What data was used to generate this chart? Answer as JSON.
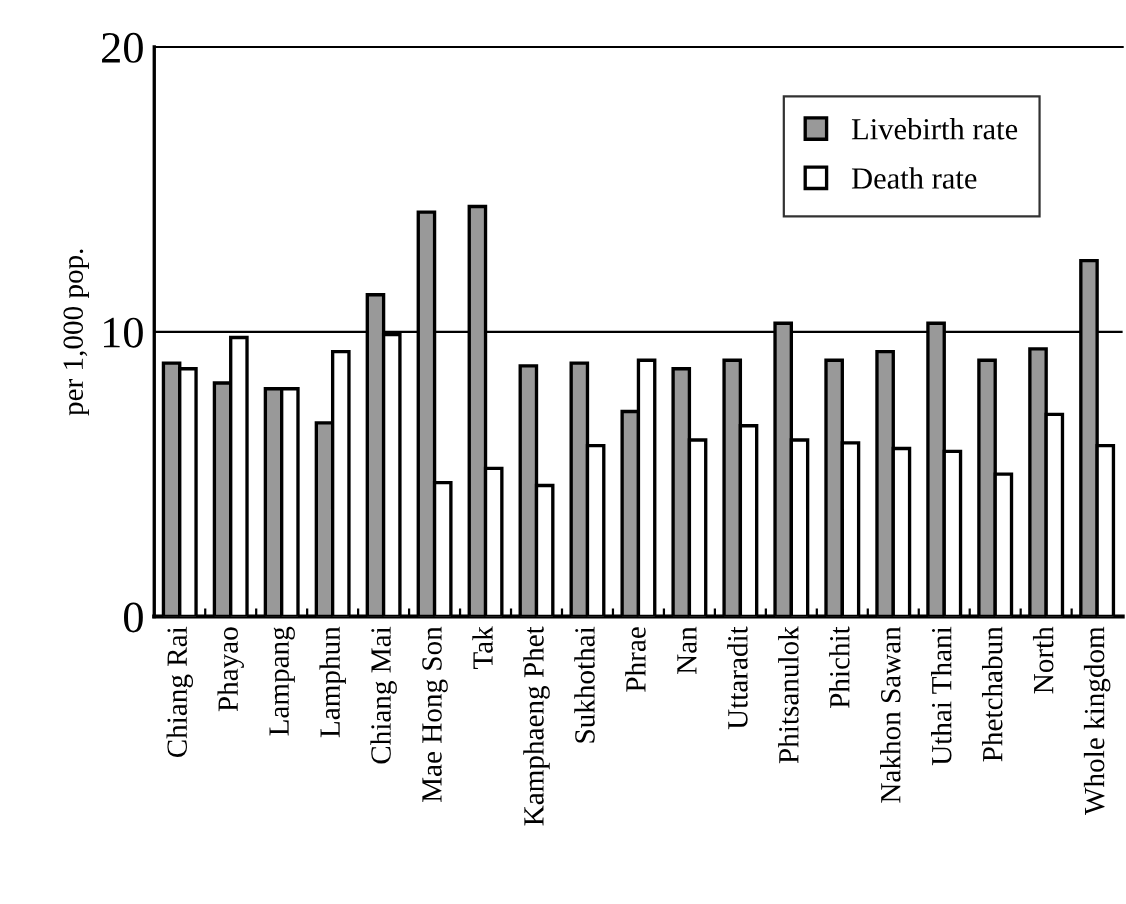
{
  "chart_data": {
    "type": "bar",
    "ylabel": "per 1,000 pop.",
    "categories": [
      "Chiang Rai",
      "Phayao",
      "Lampang",
      "Lamphun",
      "Chiang Mai",
      "Mae Hong Son",
      "Tak",
      "Kamphaeng Phet",
      "Sukhothai",
      "Phrae",
      "Nan",
      "Uttaradit",
      "Phitsanulok",
      "Phichit",
      "Nakhon Sawan",
      "Uthai Thani",
      "Phetchabun",
      "North",
      "Whole kingdom"
    ],
    "series": [
      {
        "name": "Livebirth rate",
        "color": "#999999",
        "values": [
          8.9,
          8.2,
          8.0,
          6.8,
          11.3,
          14.2,
          14.4,
          8.8,
          8.9,
          7.2,
          8.7,
          9.0,
          10.3,
          9.0,
          9.3,
          10.3,
          9.0,
          9.4,
          12.5
        ]
      },
      {
        "name": "Death rate",
        "color": "#ffffff",
        "values": [
          8.7,
          9.8,
          8.0,
          9.3,
          9.9,
          4.7,
          5.2,
          4.6,
          6.0,
          9.0,
          6.2,
          6.7,
          6.2,
          6.1,
          5.9,
          5.8,
          5.0,
          7.1,
          6.0
        ]
      }
    ],
    "ylim": [
      0,
      20
    ],
    "yticks": [
      0,
      10,
      20
    ],
    "grid": "y",
    "legend": "top right"
  }
}
